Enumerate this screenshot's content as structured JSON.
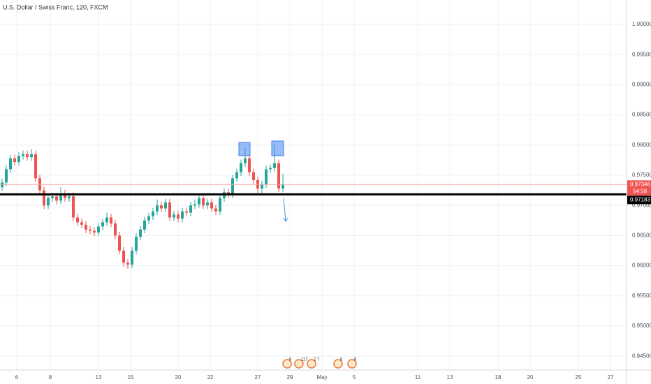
{
  "chart_data": {
    "type": "candlestick",
    "title": "U.S. Dollar / Swiss Franc, 120, FXCM",
    "up_color": "#26a69a",
    "down_color": "#ef5350",
    "open": [
      0.973,
      0.9738,
      0.976,
      0.9778,
      0.9772,
      0.9782,
      0.9785,
      0.978,
      0.9785,
      0.9745,
      0.9725,
      0.97,
      0.9712,
      0.9715,
      0.9708,
      0.972,
      0.9712,
      0.9715,
      0.968,
      0.9672,
      0.9668,
      0.966,
      0.9658,
      0.9655,
      0.9665,
      0.9672,
      0.968,
      0.967,
      0.965,
      0.9625,
      0.9605,
      0.9602,
      0.9625,
      0.9648,
      0.966,
      0.9675,
      0.9682,
      0.969,
      0.97,
      0.9695,
      0.9705,
      0.968,
      0.9685,
      0.9678,
      0.969,
      0.9688,
      0.97,
      0.9702,
      0.9712,
      0.97,
      0.9705,
      0.9695,
      0.969,
      0.9712,
      0.9722,
      0.9718,
      0.9745,
      0.9755,
      0.977,
      0.9778,
      0.9755,
      0.9742,
      0.9728,
      0.9735,
      0.976,
      0.9762,
      0.977,
      0.9728
    ],
    "high": [
      0.9744,
      0.9766,
      0.9784,
      0.9784,
      0.9788,
      0.9791,
      0.9791,
      0.9793,
      0.9791,
      0.9751,
      0.9731,
      0.9718,
      0.9721,
      0.9721,
      0.973,
      0.9726,
      0.9721,
      0.9721,
      0.9686,
      0.9678,
      0.9674,
      0.9666,
      0.9664,
      0.9671,
      0.9678,
      0.9688,
      0.9686,
      0.9676,
      0.9656,
      0.9631,
      0.9611,
      0.9631,
      0.9654,
      0.9666,
      0.9681,
      0.9688,
      0.9696,
      0.971,
      0.9706,
      0.9711,
      0.9711,
      0.9691,
      0.9691,
      0.9696,
      0.9696,
      0.9706,
      0.971,
      0.9718,
      0.9718,
      0.9711,
      0.9711,
      0.9701,
      0.9718,
      0.9728,
      0.9728,
      0.9751,
      0.9761,
      0.9776,
      0.9795,
      0.9784,
      0.9761,
      0.9748,
      0.9741,
      0.9766,
      0.9768,
      0.98,
      0.9776,
      0.9752
    ],
    "low": [
      0.9724,
      0.9732,
      0.9754,
      0.9766,
      0.9766,
      0.9776,
      0.9774,
      0.9774,
      0.9739,
      0.9719,
      0.9694,
      0.9694,
      0.9706,
      0.9702,
      0.9702,
      0.9706,
      0.9706,
      0.9674,
      0.9666,
      0.9662,
      0.9654,
      0.9652,
      0.9649,
      0.9649,
      0.9659,
      0.9666,
      0.9664,
      0.9644,
      0.9619,
      0.9599,
      0.9595,
      0.9596,
      0.9619,
      0.9642,
      0.9654,
      0.9669,
      0.9676,
      0.9684,
      0.9689,
      0.9689,
      0.9674,
      0.9674,
      0.9672,
      0.9672,
      0.9682,
      0.9682,
      0.9694,
      0.9696,
      0.9694,
      0.9694,
      0.9689,
      0.9684,
      0.9684,
      0.9706,
      0.9712,
      0.9712,
      0.9739,
      0.9749,
      0.9764,
      0.9749,
      0.9736,
      0.972,
      0.9718,
      0.9729,
      0.9754,
      0.9756,
      0.9722,
      0.9722
    ],
    "close": [
      0.9738,
      0.976,
      0.9778,
      0.9772,
      0.9782,
      0.9785,
      0.978,
      0.9785,
      0.9745,
      0.9725,
      0.97,
      0.9712,
      0.9715,
      0.9708,
      0.972,
      0.9712,
      0.9715,
      0.968,
      0.9672,
      0.9668,
      0.966,
      0.9658,
      0.9655,
      0.9665,
      0.9672,
      0.968,
      0.967,
      0.965,
      0.9625,
      0.9605,
      0.9602,
      0.9625,
      0.9648,
      0.966,
      0.9675,
      0.9682,
      0.969,
      0.97,
      0.9695,
      0.9705,
      0.968,
      0.9685,
      0.9678,
      0.969,
      0.9688,
      0.97,
      0.9702,
      0.9712,
      0.97,
      0.9705,
      0.9695,
      0.969,
      0.9712,
      0.9722,
      0.9718,
      0.9745,
      0.9755,
      0.977,
      0.9778,
      0.9755,
      0.9742,
      0.9728,
      0.9735,
      0.976,
      0.9762,
      0.977,
      0.9728,
      0.97346
    ],
    "xlim": [
      -0.5,
      149
    ],
    "xticks": [
      {
        "value": 3.5,
        "label": "6"
      },
      {
        "value": 11.5,
        "label": "8"
      },
      {
        "value": 23,
        "label": "13"
      },
      {
        "value": 30.67,
        "label": "15"
      },
      {
        "value": 42,
        "label": "20"
      },
      {
        "value": 49.67,
        "label": "22"
      },
      {
        "value": 61,
        "label": "27"
      },
      {
        "value": 68.67,
        "label": "29"
      },
      {
        "value": 76.33,
        "label": "May"
      },
      {
        "value": 84,
        "label": "5"
      },
      {
        "value": 99.17,
        "label": "11"
      },
      {
        "value": 106.83,
        "label": "13"
      },
      {
        "value": 118.33,
        "label": "18"
      },
      {
        "value": 126,
        "label": "20"
      },
      {
        "value": 137.5,
        "label": "25"
      },
      {
        "value": 145.17,
        "label": "27"
      }
    ],
    "ylim": [
      0.94271,
      1.00405
    ],
    "yticks": [
      {
        "value": 1.0,
        "label": "1.00000"
      },
      {
        "value": 0.995,
        "label": "0.99500"
      },
      {
        "value": 0.99,
        "label": "0.99000"
      },
      {
        "value": 0.985,
        "label": "0.98500"
      },
      {
        "value": 0.98,
        "label": "0.98000"
      },
      {
        "value": 0.975,
        "label": "0.97500"
      },
      {
        "value": 0.97,
        "label": "0.97000"
      },
      {
        "value": 0.965,
        "label": "0.96500"
      },
      {
        "value": 0.96,
        "label": "0.96000"
      },
      {
        "value": 0.955,
        "label": "0.95500"
      },
      {
        "value": 0.95,
        "label": "0.95000"
      },
      {
        "value": 0.945,
        "label": "0.94500"
      }
    ],
    "grid": true,
    "last_price": 0.97346,
    "countdown": "54:58",
    "level": 0.97183,
    "events": [
      "8",
      "117",
      "2 7",
      "8",
      "8"
    ]
  }
}
